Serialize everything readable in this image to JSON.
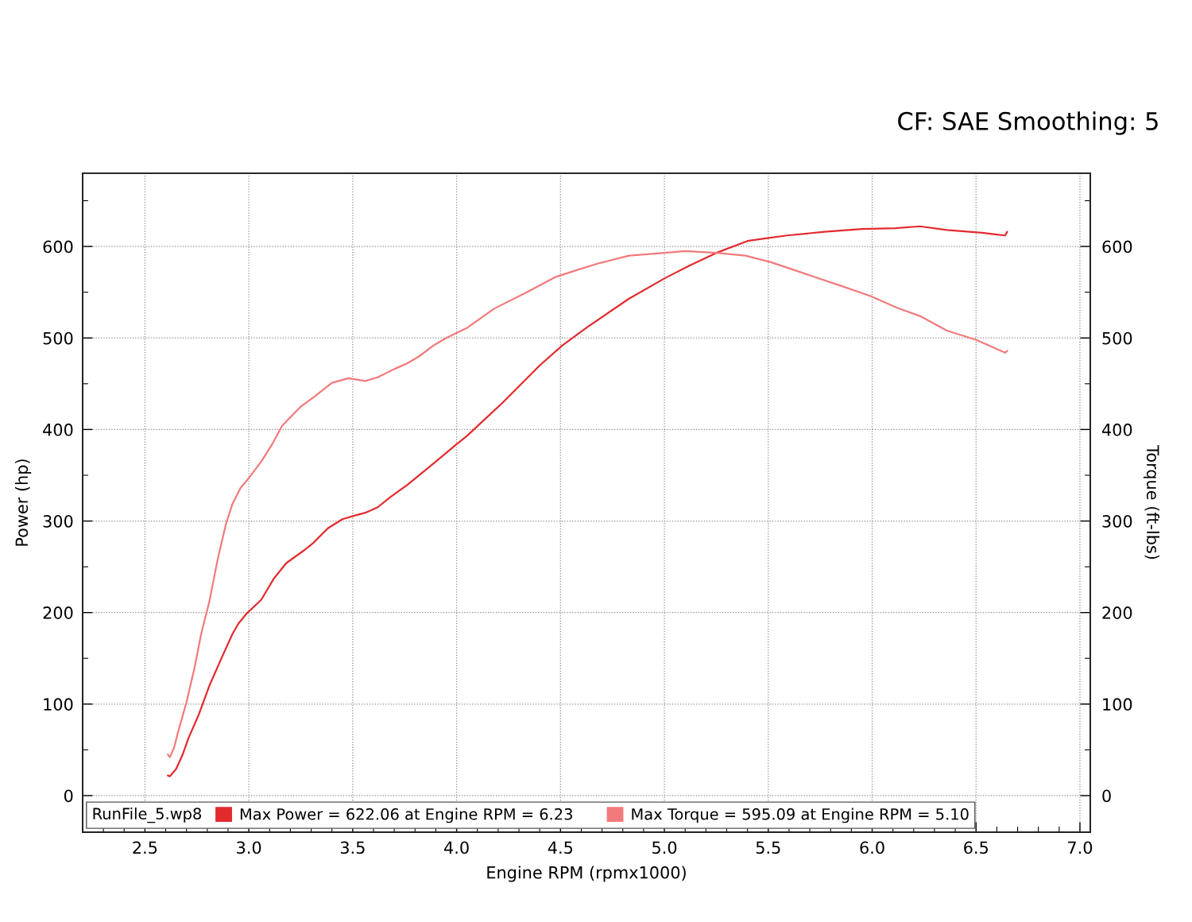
{
  "chart_data": {
    "type": "line",
    "title": "CF: SAE Smoothing: 5",
    "xlabel": "Engine RPM (rpmx1000)",
    "ylabel": "Power (hp)",
    "y2label": "Torque (ft-lbs)",
    "legend_title": "RunFile_5.wp8",
    "series": [
      {
        "name": "Max Power = 622.06 at Engine RPM = 6.23",
        "color": "#e32b2f",
        "x": [
          2.61,
          2.62,
          2.65,
          2.68,
          2.71,
          2.76,
          2.81,
          2.87,
          2.92,
          2.95,
          2.99,
          3.06,
          3.12,
          3.18,
          3.26,
          3.31,
          3.38,
          3.45,
          3.51,
          3.56,
          3.62,
          3.68,
          3.76,
          3.82,
          3.89,
          4.0,
          4.05,
          4.22,
          4.4,
          4.51,
          4.63,
          4.83,
          5.0,
          5.12,
          5.25,
          5.4,
          5.46,
          5.59,
          5.77,
          5.95,
          6.11,
          6.23,
          6.36,
          6.53,
          6.6,
          6.64,
          6.65
        ],
        "values": [
          22,
          21,
          29,
          44,
          63,
          89,
          120,
          151,
          176,
          188,
          199,
          214,
          237,
          254,
          267,
          276,
          292,
          302,
          306,
          309,
          315,
          326,
          339,
          350,
          363,
          384,
          393,
          429,
          470,
          492,
          512,
          543,
          565,
          579,
          593,
          606,
          608,
          612,
          616,
          619,
          620,
          622,
          618,
          615,
          613,
          612,
          616
        ]
      },
      {
        "name": "Max Torque = 595.09 at Engine RPM = 5.10",
        "color": "#f27a7c",
        "axis": "y2",
        "x": [
          2.61,
          2.62,
          2.64,
          2.66,
          2.7,
          2.74,
          2.77,
          2.81,
          2.85,
          2.89,
          2.92,
          2.96,
          3.0,
          3.06,
          3.11,
          3.16,
          3.25,
          3.31,
          3.4,
          3.48,
          3.56,
          3.62,
          3.7,
          3.76,
          3.82,
          3.89,
          3.95,
          4.05,
          4.18,
          4.33,
          4.48,
          4.59,
          4.69,
          4.83,
          5.0,
          5.1,
          5.25,
          5.39,
          5.51,
          5.68,
          5.85,
          5.99,
          6.12,
          6.23,
          6.36,
          6.5,
          6.64,
          6.65
        ],
        "values": [
          45,
          42,
          52,
          70,
          102,
          141,
          176,
          212,
          258,
          297,
          318,
          336,
          347,
          365,
          383,
          404,
          425,
          435,
          451,
          456,
          453,
          457,
          466,
          472,
          480,
          492,
          500,
          511,
          532,
          549,
          567,
          575,
          582,
          590,
          593,
          595,
          593,
          590,
          583,
          570,
          557,
          546,
          533,
          524,
          508,
          498,
          484,
          486
        ]
      }
    ],
    "xlim": [
      2.2,
      7.05
    ],
    "xticks": [
      2.5,
      {
        "value": 3,
        "label": "3.0"
      },
      3.5,
      {
        "value": 4,
        "label": "4.0"
      },
      4.5,
      {
        "value": 5,
        "label": "5.0"
      },
      5.5,
      {
        "value": 6,
        "label": "6.0"
      },
      6.5,
      {
        "value": 7,
        "label": "7.0"
      }
    ],
    "ylim": [
      -40,
      680
    ],
    "yticks": [
      0,
      100,
      200,
      300,
      400,
      500,
      600
    ],
    "y2lim": [
      -40,
      680
    ],
    "y2ticks": [
      0,
      100,
      200,
      300,
      400,
      500,
      600
    ],
    "grid": true,
    "legend": "bottom left",
    "marker": "none",
    "line_style": "solid"
  }
}
